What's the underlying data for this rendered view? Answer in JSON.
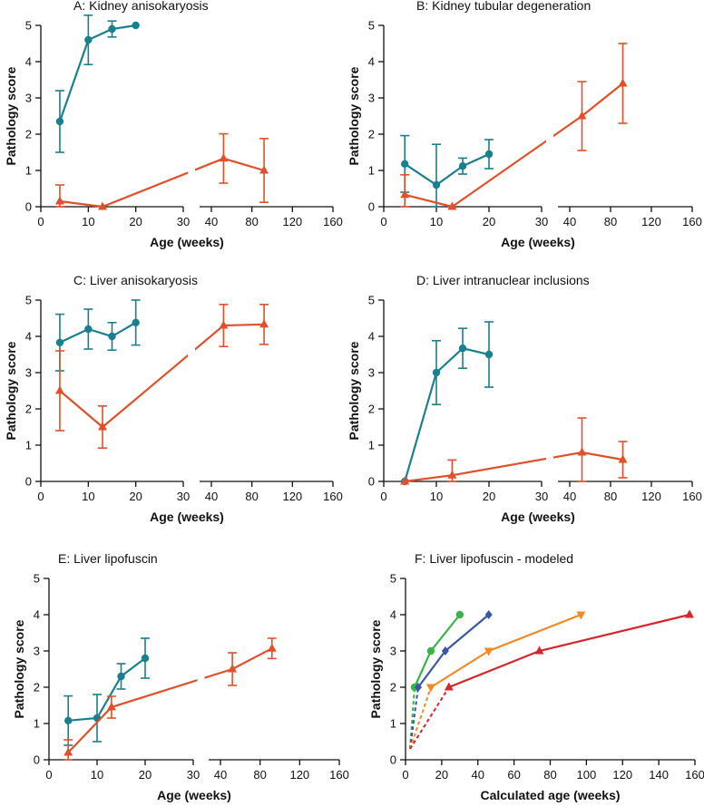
{
  "chart_data": [
    {
      "id": "A",
      "type": "line",
      "title": "A:  Kidney anisokaryosis",
      "xlabel": "Age (weeks)",
      "ylabel": "Pathology score",
      "xlim": [
        0,
        160
      ],
      "xbreak": [
        30,
        35
      ],
      "ylim": [
        0,
        5
      ],
      "xticks": [
        0,
        10,
        20,
        30,
        40,
        80,
        120,
        160
      ],
      "yticks": [
        0,
        1,
        2,
        3,
        4,
        5
      ],
      "series": [
        {
          "name": "teal",
          "color": "#1a7f8e",
          "marker": "circle",
          "x": [
            4,
            10,
            15,
            20
          ],
          "y": [
            2.35,
            4.6,
            4.9,
            5.0
          ],
          "err": [
            0.85,
            0.68,
            0.22,
            0
          ]
        },
        {
          "name": "orange",
          "color": "#e0502a",
          "marker": "triangle",
          "x": [
            4,
            13,
            52,
            92
          ],
          "y": [
            0.15,
            0,
            1.33,
            1.0
          ],
          "err": [
            0.45,
            0,
            0.68,
            0.88
          ]
        }
      ]
    },
    {
      "id": "B",
      "type": "line",
      "title": "B:  Kidney tubular degeneration",
      "xlabel": "Age (weeks)",
      "ylabel": "Pathology score",
      "xlim": [
        0,
        160
      ],
      "xbreak": [
        30,
        35
      ],
      "ylim": [
        0,
        5
      ],
      "xticks": [
        0,
        10,
        20,
        30,
        40,
        80,
        120,
        160
      ],
      "yticks": [
        0,
        1,
        2,
        3,
        4,
        5
      ],
      "series": [
        {
          "name": "teal",
          "color": "#1a7f8e",
          "marker": "circle",
          "x": [
            4,
            10,
            15,
            20
          ],
          "y": [
            1.18,
            0.6,
            1.12,
            1.45
          ],
          "err": [
            0.78,
            1.12,
            0.22,
            0.4
          ]
        },
        {
          "name": "orange",
          "color": "#e0502a",
          "marker": "triangle",
          "x": [
            4,
            13,
            52,
            92
          ],
          "y": [
            0.33,
            0,
            2.5,
            3.4
          ],
          "err": [
            0.55,
            0,
            0.95,
            1.1
          ]
        }
      ]
    },
    {
      "id": "C",
      "type": "line",
      "title": "C:  Liver anisokaryosis",
      "xlabel": "Age (weeks)",
      "ylabel": "Pathology score",
      "xlim": [
        0,
        160
      ],
      "xbreak": [
        30,
        35
      ],
      "ylim": [
        0,
        5
      ],
      "xticks": [
        0,
        10,
        20,
        30,
        40,
        80,
        120,
        160
      ],
      "yticks": [
        0,
        1,
        2,
        3,
        4,
        5
      ],
      "series": [
        {
          "name": "teal",
          "color": "#1a7f8e",
          "marker": "circle",
          "x": [
            4,
            10,
            15,
            20
          ],
          "y": [
            3.83,
            4.2,
            4.0,
            4.38
          ],
          "err": [
            0.78,
            0.55,
            0.38,
            0.62
          ]
        },
        {
          "name": "orange",
          "color": "#e0502a",
          "marker": "triangle",
          "x": [
            4,
            13,
            52,
            92
          ],
          "y": [
            2.5,
            1.5,
            4.3,
            4.33
          ],
          "err": [
            1.1,
            0.58,
            0.58,
            0.55
          ]
        }
      ]
    },
    {
      "id": "D",
      "type": "line",
      "title": "D:  Liver intranuclear inclusions",
      "xlabel": "Age (weeks)",
      "ylabel": "Pathology score",
      "xlim": [
        0,
        160
      ],
      "xbreak": [
        30,
        35
      ],
      "ylim": [
        0,
        5
      ],
      "xticks": [
        0,
        10,
        20,
        30,
        40,
        80,
        120,
        160
      ],
      "yticks": [
        0,
        1,
        2,
        3,
        4,
        5
      ],
      "series": [
        {
          "name": "teal",
          "color": "#1a7f8e",
          "marker": "circle",
          "x": [
            4,
            10,
            15,
            20
          ],
          "y": [
            0,
            3.0,
            3.67,
            3.5
          ],
          "err": [
            0,
            0.88,
            0.55,
            0.9
          ]
        },
        {
          "name": "orange",
          "color": "#e0502a",
          "marker": "triangle",
          "x": [
            4,
            13,
            52,
            92
          ],
          "y": [
            0,
            0.17,
            0.8,
            0.6
          ],
          "err": [
            0,
            0.42,
            0.95,
            0.5
          ]
        }
      ]
    },
    {
      "id": "E",
      "type": "line",
      "title": "E:  Liver lipofuscin",
      "xlabel": "Age (weeks)",
      "ylabel": "Pathology score",
      "xlim": [
        0,
        160
      ],
      "xbreak": [
        30,
        35
      ],
      "ylim": [
        0,
        5
      ],
      "xticks": [
        0,
        10,
        20,
        30,
        40,
        80,
        120,
        160
      ],
      "yticks": [
        0,
        1,
        2,
        3,
        4,
        5
      ],
      "series": [
        {
          "name": "teal",
          "color": "#1a7f8e",
          "marker": "circle",
          "x": [
            4,
            10,
            15,
            20
          ],
          "y": [
            1.08,
            1.15,
            2.3,
            2.8
          ],
          "err": [
            0.68,
            0.65,
            0.35,
            0.55
          ]
        },
        {
          "name": "orange",
          "color": "#e0502a",
          "marker": "triangle",
          "x": [
            4,
            13,
            52,
            92
          ],
          "y": [
            0.2,
            1.45,
            2.5,
            3.07
          ],
          "err": [
            0.35,
            0.3,
            0.45,
            0.28
          ]
        }
      ]
    },
    {
      "id": "F",
      "type": "line",
      "title": "F:  Liver lipofuscin - modeled",
      "xlabel": "Calculated age (weeks)",
      "ylabel": "Pathology score",
      "xlim": [
        0,
        160
      ],
      "ylim": [
        0,
        5
      ],
      "xticks": [
        0,
        20,
        40,
        60,
        80,
        100,
        120,
        140,
        160
      ],
      "yticks": [
        0,
        1,
        2,
        3,
        4,
        5
      ],
      "series": [
        {
          "name": "green",
          "color": "#3cb34a",
          "marker": "circle",
          "x": [
            5,
            14,
            30
          ],
          "y": [
            2,
            3,
            4
          ],
          "dashed_from": [
            0,
            0.3
          ]
        },
        {
          "name": "blue",
          "color": "#3a57a6",
          "marker": "diamond",
          "x": [
            7,
            22,
            46
          ],
          "y": [
            2,
            3,
            4
          ],
          "dashed_from": [
            0,
            0.3
          ]
        },
        {
          "name": "orange",
          "color": "#f08a24",
          "marker": "triangle-down",
          "x": [
            14,
            46,
            97
          ],
          "y": [
            2,
            3,
            4
          ],
          "dashed_from": [
            0,
            0.3
          ]
        },
        {
          "name": "red",
          "color": "#d8252b",
          "marker": "triangle",
          "x": [
            24,
            74,
            157
          ],
          "y": [
            2,
            3,
            4
          ],
          "dashed_from": [
            0,
            0.3
          ]
        }
      ]
    }
  ]
}
